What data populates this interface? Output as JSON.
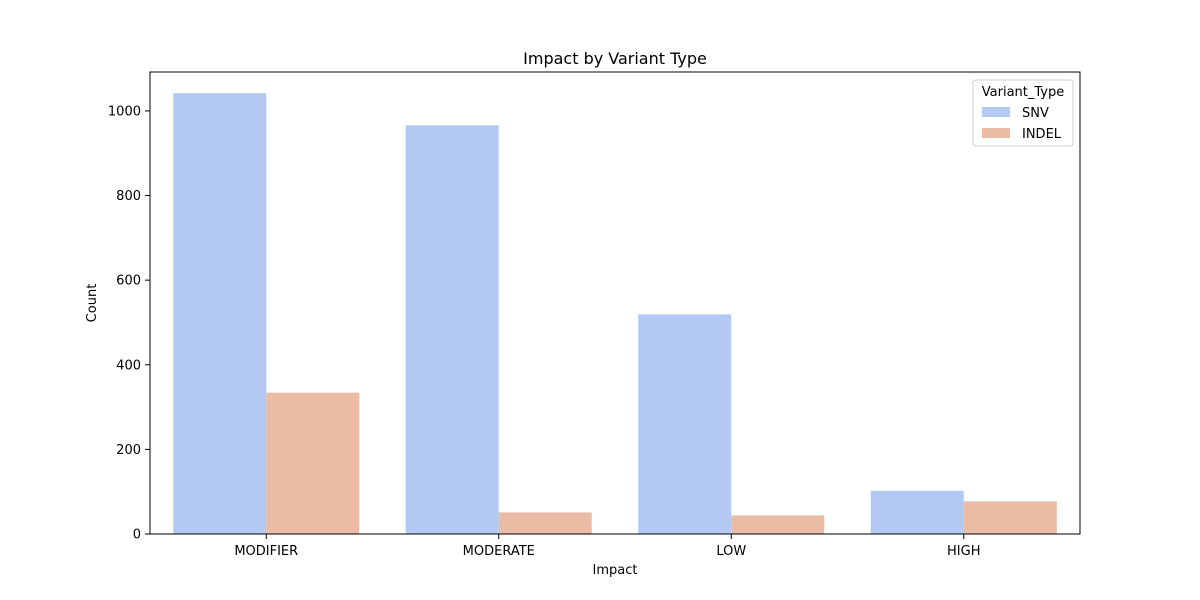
{
  "chart_data": {
    "type": "bar",
    "title": "Impact by Variant Type",
    "xlabel": "Impact",
    "ylabel": "Count",
    "categories": [
      "MODIFIER",
      "MODERATE",
      "LOW",
      "HIGH"
    ],
    "series": [
      {
        "name": "SNV",
        "values": [
          1042,
          966,
          519,
          102
        ],
        "color": "#b3c9f4"
      },
      {
        "name": "INDEL",
        "values": [
          334,
          51,
          44,
          77
        ],
        "color": "#ebbca5"
      }
    ],
    "ylim": [
      0,
      1092
    ],
    "yticks": [
      0,
      200,
      400,
      600,
      800,
      1000
    ],
    "grid": false,
    "legend": {
      "title": "Variant_Type",
      "position": "top-right"
    }
  }
}
